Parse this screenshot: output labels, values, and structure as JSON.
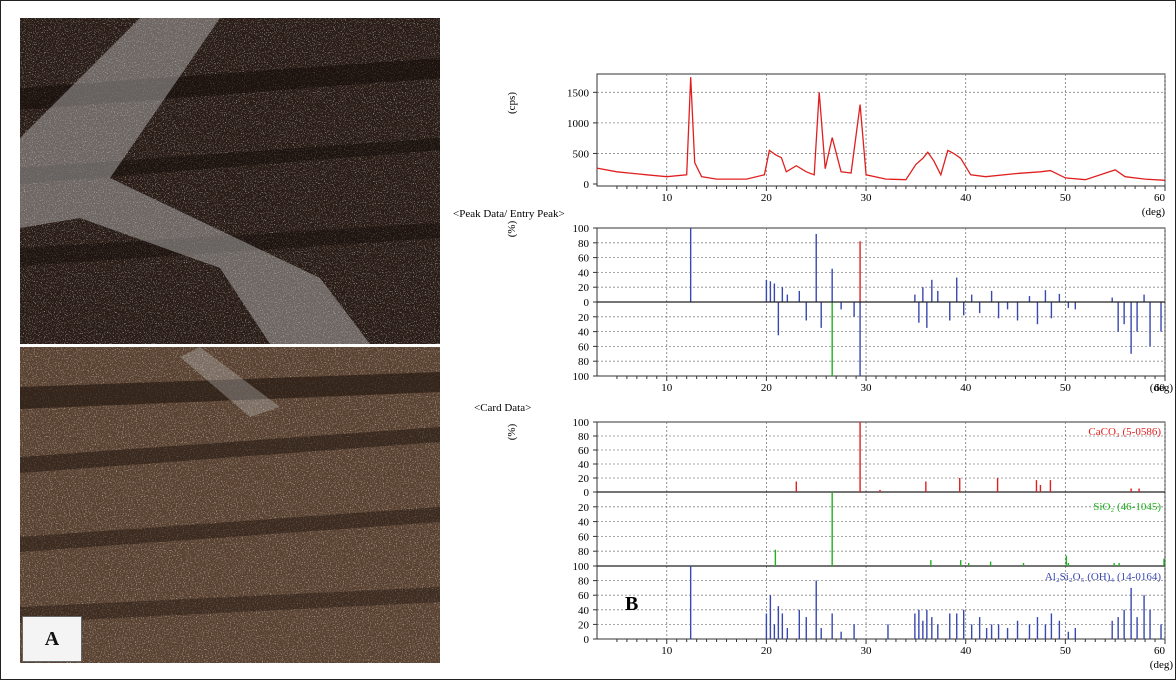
{
  "figure": {
    "label_a": "A",
    "label_b": "B"
  },
  "panel_b": {
    "chart1": {
      "ylabel": "(cps)",
      "xunit": "(deg)",
      "yticks": [
        "1500",
        "1000",
        "500",
        "0"
      ]
    },
    "chart2": {
      "header": "<Peak Data/ Entry Peak>",
      "ylabel": "(%)",
      "xunit": "(deg)",
      "yticks": [
        "100",
        "80",
        "60",
        "40",
        "20",
        "0",
        "20",
        "40",
        "60",
        "80",
        "100"
      ]
    },
    "chart3": {
      "header": "<Card Data>",
      "ylabel": "(%)",
      "xunit": "(deg)",
      "yticks_top": [
        "100",
        "80",
        "60",
        "40",
        "20",
        "0"
      ],
      "yticks_mid": [
        "20",
        "40",
        "60",
        "80",
        "100"
      ],
      "yticks_bot": [
        "80",
        "60",
        "40",
        "20",
        "0"
      ]
    },
    "xticks": [
      "10",
      "20",
      "30",
      "40",
      "50",
      "60"
    ]
  },
  "chart_data": [
    {
      "type": "line",
      "ylabel": "(cps)",
      "xlabel": "(deg)",
      "xlim": [
        3,
        60
      ],
      "ylim": [
        0,
        1800
      ],
      "series": [
        {
          "color": "#e02020",
          "x": [
            3,
            5,
            8,
            10,
            12,
            12.4,
            12.8,
            13.5,
            15,
            18,
            19.8,
            20.3,
            20.9,
            21.5,
            22,
            23,
            24,
            24.8,
            25.3,
            25.9,
            26.6,
            27.5,
            28.5,
            29.4,
            30,
            32,
            34,
            35,
            35.7,
            36.2,
            36.8,
            37.5,
            38.2,
            38.8,
            39.5,
            40.5,
            42,
            45,
            47.5,
            48.5,
            50,
            52,
            55,
            56,
            58,
            60
          ],
          "y": [
            260,
            200,
            150,
            120,
            150,
            1750,
            350,
            120,
            80,
            80,
            150,
            550,
            480,
            430,
            200,
            300,
            200,
            150,
            1500,
            250,
            760,
            200,
            180,
            1300,
            150,
            80,
            70,
            320,
            420,
            520,
            380,
            150,
            550,
            500,
            420,
            150,
            120,
            170,
            200,
            220,
            100,
            70,
            230,
            120,
            80,
            60
          ]
        }
      ]
    },
    {
      "type": "bar",
      "title": "<Peak Data/ Entry Peak>",
      "ylabel": "(%)",
      "xlabel": "(deg)",
      "xlim": [
        3,
        60
      ],
      "ylim": [
        -100,
        100
      ],
      "series": [
        {
          "color": "#3848b0",
          "x": [
            12.4,
            20.0,
            20.4,
            20.8,
            21.2,
            21.6,
            22.1,
            23.3,
            24.0,
            25.0,
            25.5,
            26.6,
            27.5,
            28.8,
            29.4,
            34.9,
            35.3,
            35.7,
            36.1,
            36.6,
            37.2,
            38.4,
            39.1,
            39.8,
            40.6,
            41.4,
            42.6,
            43.3,
            44.2,
            45.2,
            46.4,
            47.2,
            48.0,
            48.6,
            49.4,
            50.3,
            51.0,
            54.7,
            55.3,
            55.9,
            56.6,
            57.2,
            57.9,
            58.5,
            59.6
          ],
          "values": [
            100,
            30,
            28,
            25,
            -45,
            20,
            10,
            15,
            -25,
            92,
            -35,
            45,
            -10,
            -20,
            -100,
            10,
            -28,
            20,
            -35,
            30,
            15,
            -25,
            33,
            -18,
            10,
            -15,
            15,
            -22,
            -10,
            -25,
            8,
            -30,
            16,
            -22,
            11,
            -8,
            -10,
            6,
            -40,
            -30,
            -70,
            -40,
            10,
            -60,
            -40
          ]
        },
        {
          "color": "#20b020",
          "x": [
            26.6
          ],
          "values": [
            -100
          ]
        },
        {
          "color": "#e02020",
          "x": [
            29.4
          ],
          "values": [
            82
          ]
        }
      ]
    },
    {
      "type": "bar",
      "title": "<Card Data>",
      "ylabel": "(%)",
      "xlabel": "(deg)",
      "xlim": [
        3,
        60
      ],
      "series": [
        {
          "name": "CaCO₃ (5-0586)",
          "color": "#e02020",
          "x": [
            23.0,
            29.4,
            31.4,
            36.0,
            39.4,
            43.2,
            47.1,
            47.5,
            48.5,
            56.6,
            57.4
          ],
          "values": [
            15,
            100,
            3,
            15,
            20,
            20,
            17,
            10,
            17,
            5,
            5
          ]
        },
        {
          "name": "SiO₂ (46-1045)",
          "color": "#20b020",
          "x": [
            20.9,
            26.6,
            36.5,
            39.5,
            40.3,
            42.5,
            45.8,
            50.1,
            50.3,
            54.9,
            55.4,
            59.9
          ],
          "values": [
            22,
            100,
            8,
            8,
            4,
            6,
            4,
            14,
            4,
            4,
            4,
            10
          ]
        },
        {
          "name": "Al₂Si₂O₅ (OH)₄ (14-0164)",
          "color": "#3848b0",
          "x": [
            12.4,
            20.0,
            20.4,
            20.8,
            21.2,
            21.6,
            22.1,
            23.3,
            24.0,
            25.0,
            25.5,
            26.6,
            27.5,
            28.8,
            32.2,
            34.9,
            35.3,
            35.7,
            36.1,
            36.6,
            37.2,
            38.4,
            39.1,
            39.8,
            40.6,
            41.4,
            42.1,
            42.6,
            43.3,
            44.2,
            45.2,
            46.4,
            47.2,
            48.0,
            48.6,
            49.4,
            50.3,
            51.0,
            54.7,
            55.3,
            55.9,
            56.6,
            57.2,
            57.9,
            58.5,
            59.6
          ],
          "values": [
            100,
            35,
            60,
            20,
            45,
            35,
            15,
            40,
            30,
            80,
            15,
            35,
            10,
            20,
            20,
            35,
            40,
            25,
            40,
            30,
            20,
            35,
            35,
            40,
            20,
            30,
            15,
            20,
            20,
            15,
            25,
            20,
            30,
            20,
            35,
            25,
            10,
            15,
            25,
            30,
            40,
            70,
            30,
            60,
            40,
            20
          ]
        }
      ]
    }
  ]
}
